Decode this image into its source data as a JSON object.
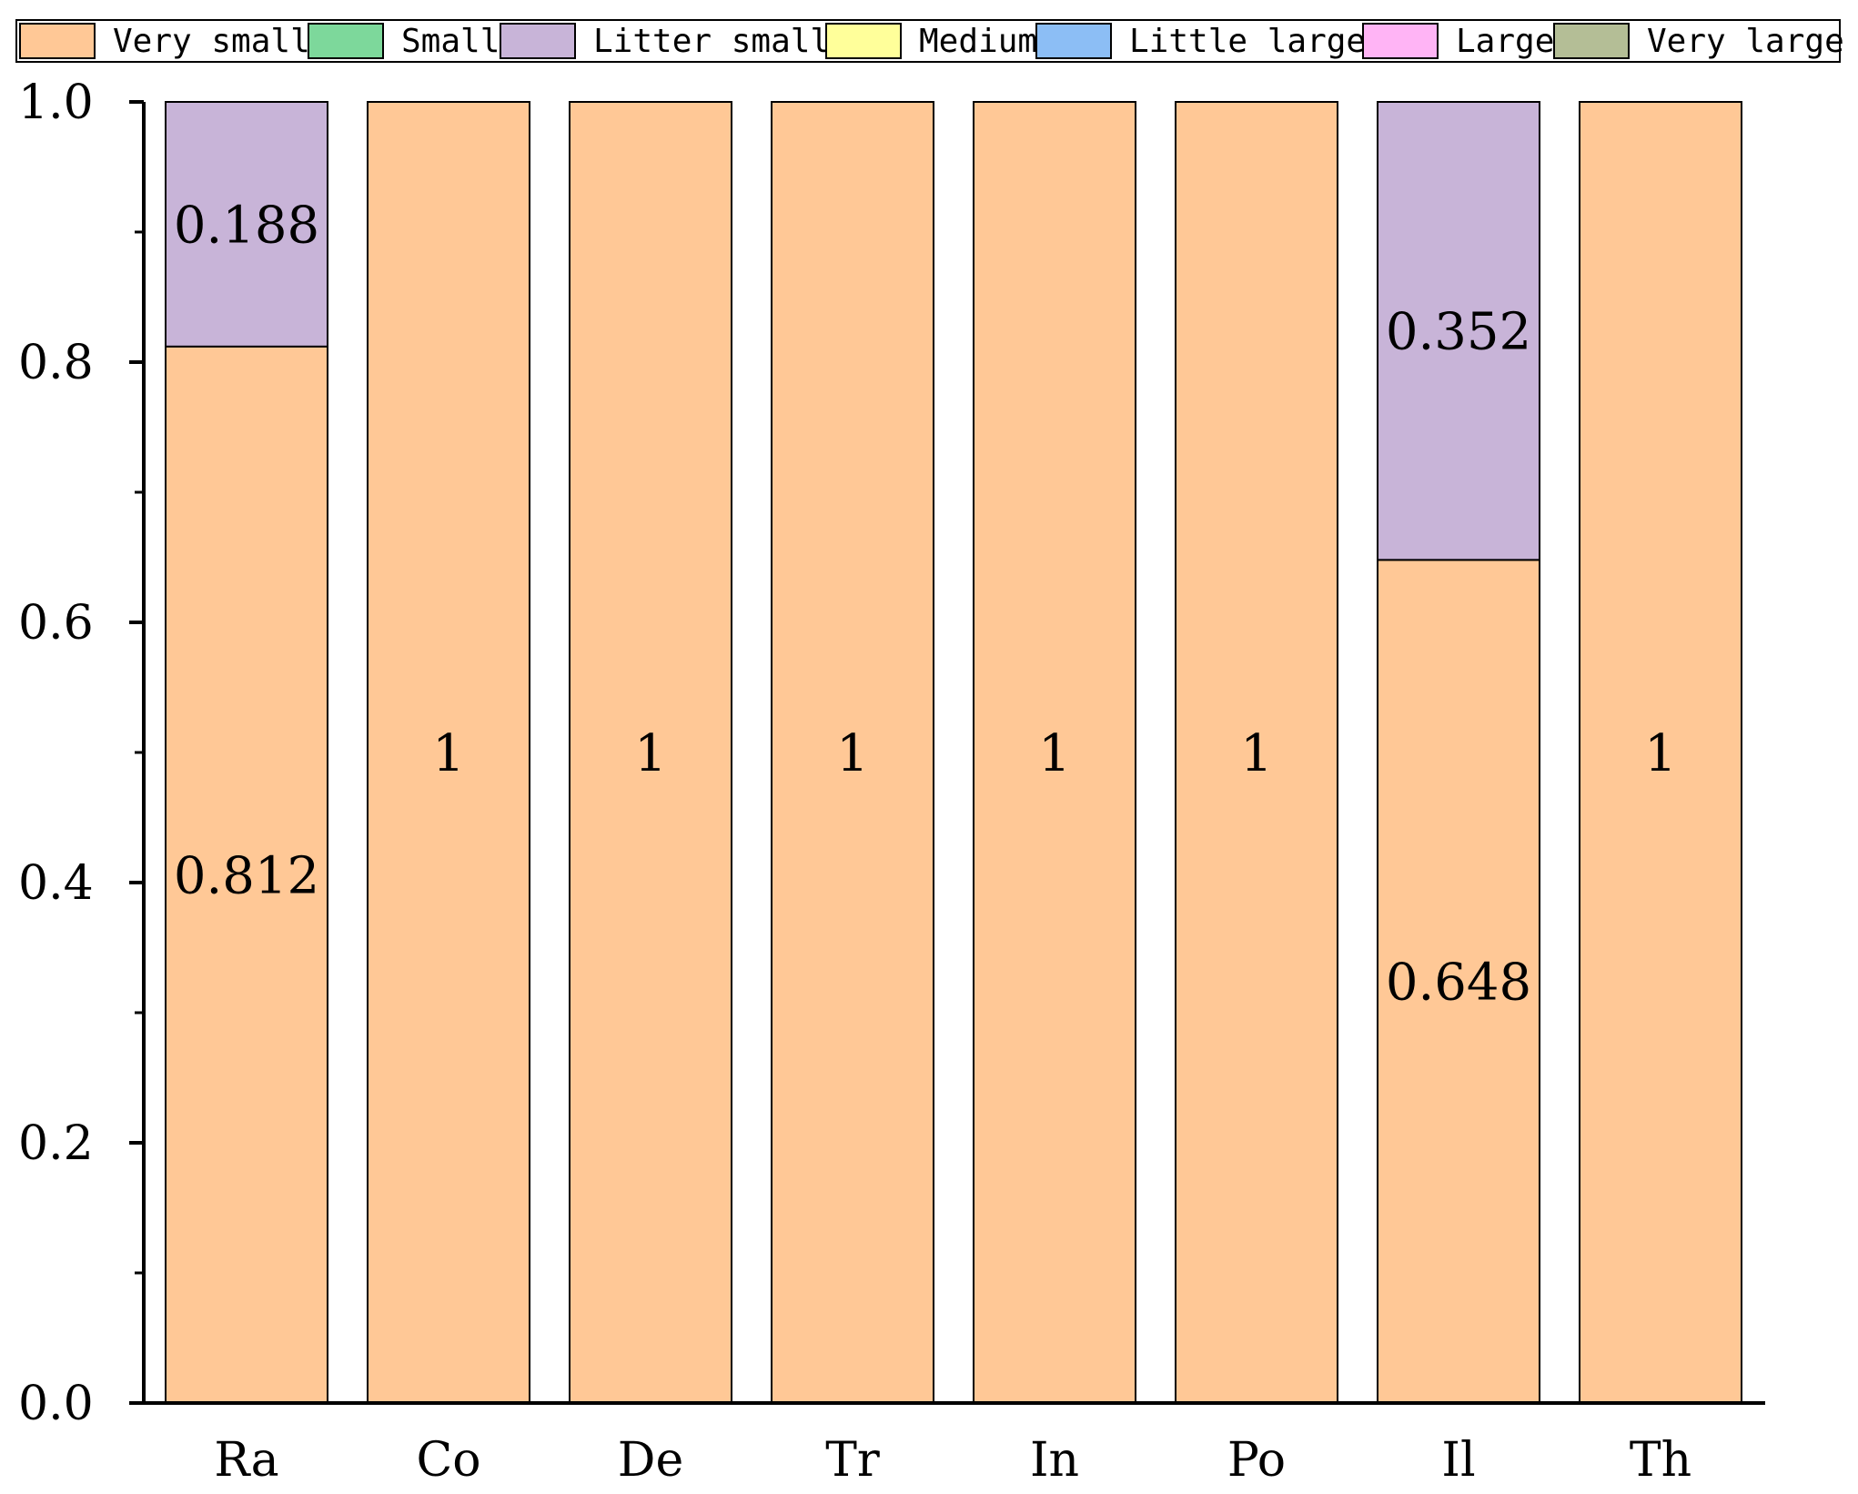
{
  "chart_data": {
    "type": "bar",
    "stacked": true,
    "title": "",
    "xlabel": "",
    "ylabel": "",
    "ylim": [
      0,
      1.0
    ],
    "yticks": [
      0.0,
      0.2,
      0.4,
      0.6,
      0.8,
      1.0
    ],
    "ytick_labels": [
      "0.0",
      "0.2",
      "0.4",
      "0.6",
      "0.8",
      "1.0"
    ],
    "categories": [
      "Ra",
      "Co",
      "De",
      "Tr",
      "In",
      "Po",
      "Il",
      "Th"
    ],
    "legend_position": "top",
    "series": [
      {
        "name": "Very small",
        "color": "#FFC896",
        "values": [
          0.812,
          1,
          1,
          1,
          1,
          1,
          0.648,
          1
        ],
        "labels": [
          "0.812",
          "1",
          "1",
          "1",
          "1",
          "1",
          "0.648",
          "1"
        ]
      },
      {
        "name": "Small",
        "color": "#7DD89B",
        "values": [
          0,
          0,
          0,
          0,
          0,
          0,
          0,
          0
        ],
        "labels": [
          "",
          "",
          "",
          "",
          "",
          "",
          "",
          ""
        ]
      },
      {
        "name": "Litter small",
        "color": "#C8B4D8",
        "values": [
          0.188,
          0,
          0,
          0,
          0,
          0,
          0.352,
          0
        ],
        "labels": [
          "0.188",
          "",
          "",
          "",
          "",
          "",
          "0.352",
          ""
        ]
      },
      {
        "name": "Medium",
        "color": "#FFFF9A",
        "values": [
          0,
          0,
          0,
          0,
          0,
          0,
          0,
          0
        ],
        "labels": [
          "",
          "",
          "",
          "",
          "",
          "",
          "",
          ""
        ]
      },
      {
        "name": "Little large",
        "color": "#8CBEF5",
        "values": [
          0,
          0,
          0,
          0,
          0,
          0,
          0,
          0
        ],
        "labels": [
          "",
          "",
          "",
          "",
          "",
          "",
          "",
          ""
        ]
      },
      {
        "name": "Large",
        "color": "#FFB4F5",
        "values": [
          0,
          0,
          0,
          0,
          0,
          0,
          0,
          0
        ],
        "labels": [
          "",
          "",
          "",
          "",
          "",
          "",
          "",
          ""
        ]
      },
      {
        "name": "Very large",
        "color": "#B4BE96",
        "values": [
          0,
          0,
          0,
          0,
          0,
          0,
          0,
          0
        ],
        "labels": [
          "",
          "",
          "",
          "",
          "",
          "",
          "",
          ""
        ]
      }
    ]
  }
}
